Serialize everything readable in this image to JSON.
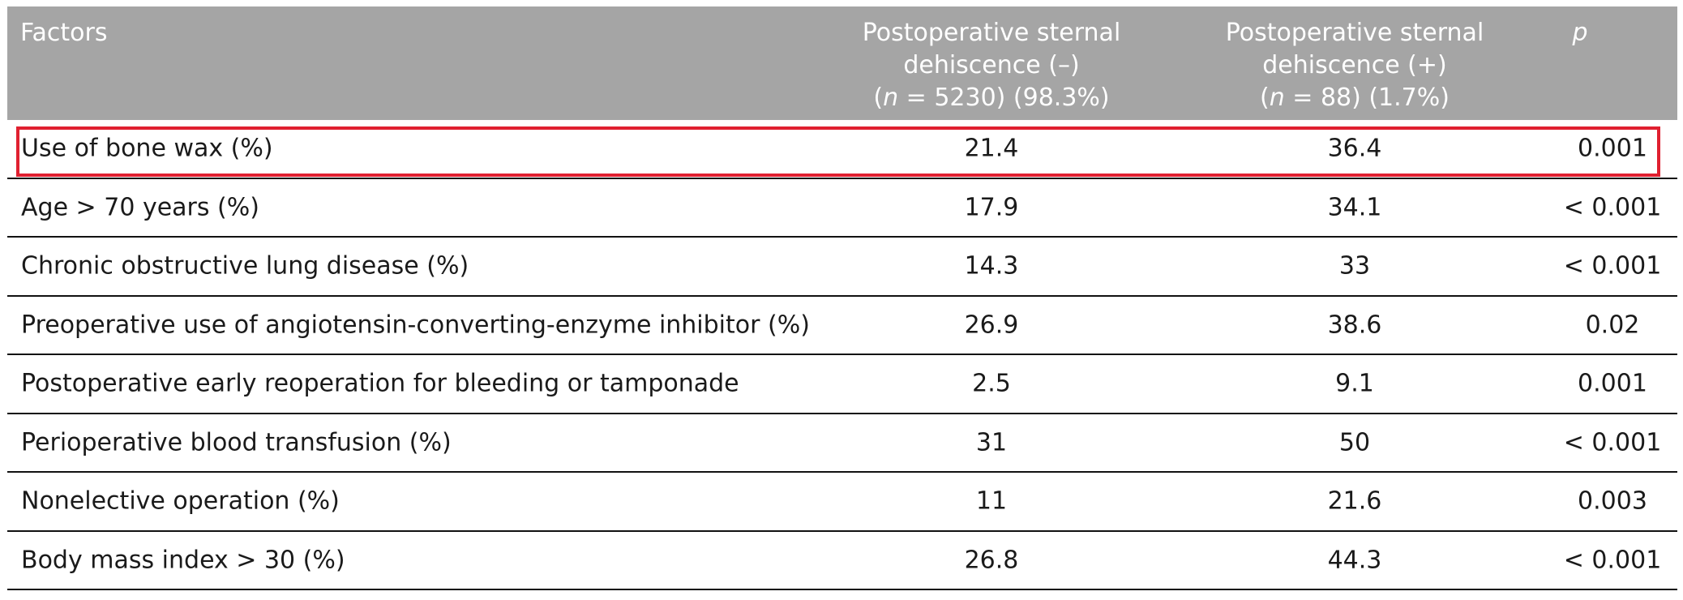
{
  "table": {
    "headers": {
      "factors": "Factors",
      "neg_line1": "Postoperative sternal",
      "neg_line2": "dehiscence (–)",
      "neg_n_prefix": "(",
      "neg_n_italic": "n",
      "neg_n_rest": " = 5230) (98.3%)",
      "pos_line1": "Postoperative sternal",
      "pos_line2": "dehiscence (+)",
      "pos_n_prefix": "(",
      "pos_n_italic": "n",
      "pos_n_rest": " = 88) (1.7%)",
      "p": "p"
    },
    "rows": [
      {
        "factor": "Use of bone wax (%)",
        "neg": "21.4",
        "pos": "36.4",
        "p": "0.001"
      },
      {
        "factor": "Age > 70 years (%)",
        "neg": "17.9",
        "pos": "34.1",
        "p": "< 0.001"
      },
      {
        "factor": "Chronic obstructive lung disease (%)",
        "neg": "14.3",
        "pos": "33",
        "p": "< 0.001"
      },
      {
        "factor": "Preoperative use of angiotensin-converting-enzyme inhibitor (%)",
        "neg": "26.9",
        "pos": "38.6",
        "p": "0.02"
      },
      {
        "factor": "Postoperative early reoperation for bleeding or tamponade",
        "neg": "2.5",
        "pos": "9.1",
        "p": "0.001"
      },
      {
        "factor": "Perioperative blood transfusion (%)",
        "neg": "31",
        "pos": "50",
        "p": "< 0.001"
      },
      {
        "factor": "Nonelective operation (%)",
        "neg": "11",
        "pos": "21.6",
        "p": "0.003"
      },
      {
        "factor": "Body mass index > 30 (%)",
        "neg": "26.8",
        "pos": "44.3",
        "p": "< 0.001"
      }
    ]
  },
  "colors": {
    "header_bg": "#a5a5a5",
    "highlight": "#e02030"
  }
}
